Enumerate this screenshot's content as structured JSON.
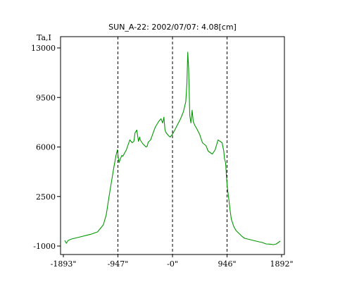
{
  "chart_data": {
    "type": "line",
    "title": "SUN_A-22: 2002/07/07: 4.08[cm]",
    "ylabel": "Ta,I",
    "xlabel": "",
    "xlim": [
      -1893,
      1892
    ],
    "ylim": [
      -1000,
      13000
    ],
    "grid": false,
    "legend": "none",
    "x_ticks": [
      {
        "value": -1893,
        "label": "-1893\""
      },
      {
        "value": -947,
        "label": "-947\""
      },
      {
        "value": 0,
        "label": "-0\""
      },
      {
        "value": 946,
        "label": "946\""
      },
      {
        "value": 1892,
        "label": "1892\""
      }
    ],
    "y_ticks": [
      {
        "value": -1000,
        "label": "-1000"
      },
      {
        "value": 2500,
        "label": "2500"
      },
      {
        "value": 6000,
        "label": "6000"
      },
      {
        "value": 9500,
        "label": "9500"
      },
      {
        "value": 13000,
        "label": "13000"
      }
    ],
    "vlines": [
      -947,
      0,
      946
    ],
    "series": [
      {
        "color": "#009900",
        "x": [
          -1870,
          -1840,
          -1810,
          -1750,
          -1700,
          -1600,
          -1400,
          -1300,
          -1200,
          -1150,
          -1100,
          -1060,
          -1020,
          -980,
          -955,
          -940,
          -925,
          -910,
          -880,
          -860,
          -840,
          -800,
          -740,
          -700,
          -670,
          -650,
          -620,
          -590,
          -570,
          -560,
          -520,
          -460,
          -440,
          -420,
          -380,
          -340,
          -300,
          -240,
          -200,
          -170,
          -150,
          -130,
          -110,
          -90,
          -70,
          -40,
          0,
          40,
          90,
          140,
          190,
          230,
          250,
          265,
          280,
          290,
          300,
          320,
          340,
          360,
          390,
          420,
          470,
          520,
          580,
          620,
          690,
          740,
          790,
          860,
          890,
          900,
          920,
          935,
          950,
          980,
          1000,
          1020,
          1060,
          1100,
          1150,
          1200,
          1250,
          1300,
          1350,
          1400,
          1500,
          1560,
          1620,
          1700,
          1750,
          1800,
          1850,
          1870
        ],
        "y": [
          -600,
          -800,
          -600,
          -500,
          -450,
          -350,
          -150,
          0,
          500,
          1200,
          2500,
          3500,
          4500,
          5400,
          5800,
          5200,
          4900,
          5100,
          5400,
          5350,
          5500,
          5800,
          6500,
          6300,
          6400,
          7000,
          7200,
          6400,
          6700,
          6500,
          6250,
          6000,
          6050,
          6350,
          6500,
          6950,
          7400,
          7800,
          8000,
          7700,
          8100,
          7200,
          7000,
          6900,
          6800,
          6700,
          6900,
          7200,
          7600,
          8000,
          8500,
          9200,
          10500,
          12700,
          11500,
          9800,
          8200,
          7700,
          8600,
          7800,
          7500,
          7300,
          6900,
          6300,
          6100,
          5700,
          5500,
          5800,
          6500,
          6300,
          5700,
          5200,
          4900,
          4000,
          3200,
          2200,
          1500,
          900,
          400,
          100,
          -100,
          -300,
          -450,
          -500,
          -550,
          -600,
          -700,
          -750,
          -850,
          -870,
          -900,
          -850,
          -700,
          -650
        ]
      }
    ]
  }
}
